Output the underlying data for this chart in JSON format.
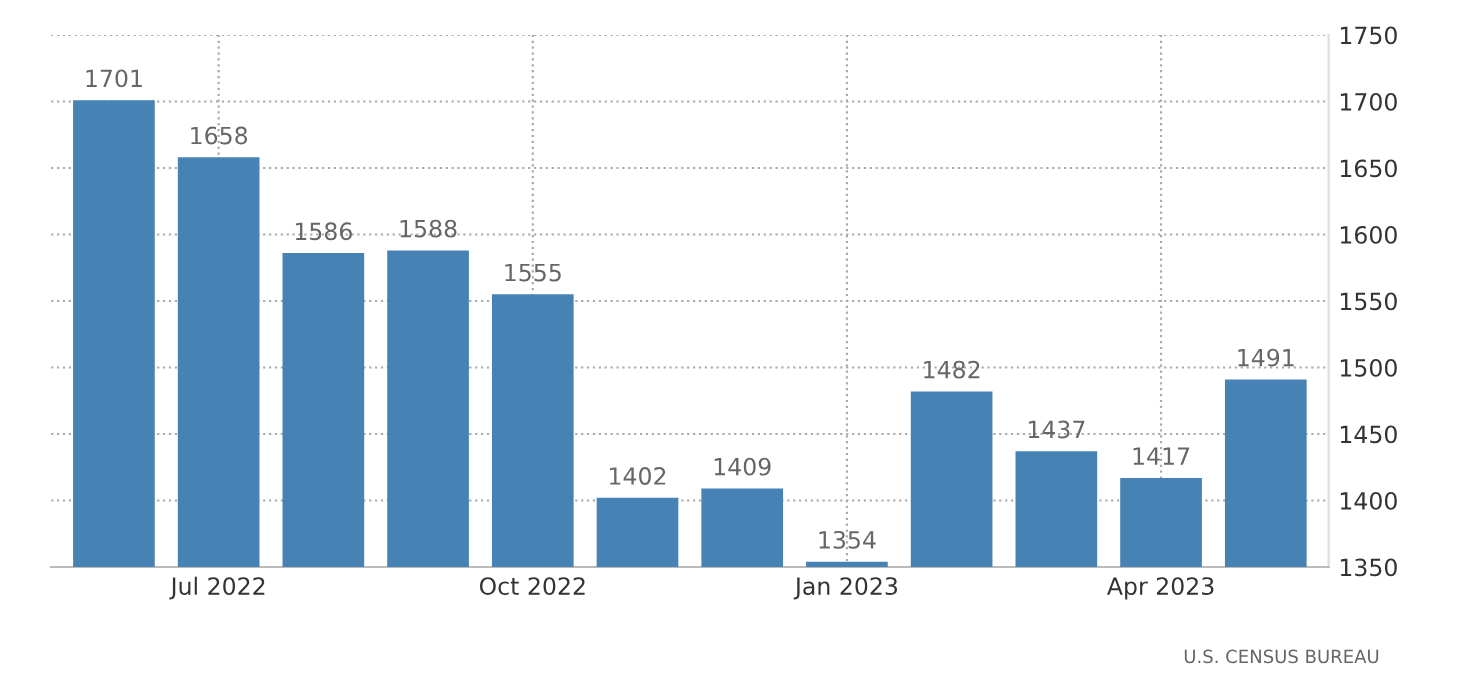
{
  "chart_data": {
    "type": "bar",
    "categories": [
      null,
      "Jul 2022",
      null,
      null,
      "Oct 2022",
      null,
      null,
      "Jan 2023",
      null,
      null,
      "Apr 2023",
      null
    ],
    "values": [
      1701,
      1658,
      1586,
      1588,
      1555,
      1402,
      1409,
      1354,
      1482,
      1437,
      1417,
      1491
    ],
    "color": "#4682b4",
    "ylim": [
      1350,
      1750
    ],
    "yticks": [
      1350,
      1400,
      1450,
      1500,
      1550,
      1600,
      1650,
      1700,
      1750
    ],
    "grid": true,
    "data_labels": true,
    "annotations": [
      "U.S. CENSUS BUREAU"
    ]
  }
}
